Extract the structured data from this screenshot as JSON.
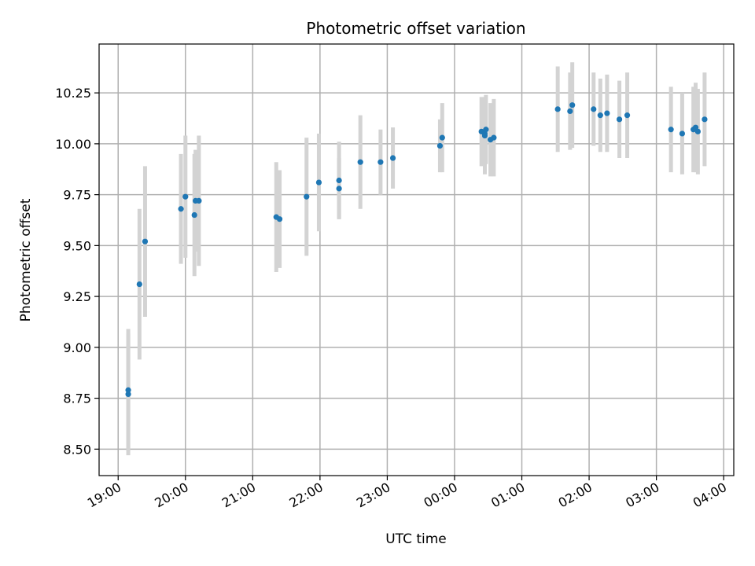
{
  "chart_data": {
    "type": "scatter",
    "title": "Photometric offset variation",
    "xlabel": "UTC time",
    "ylabel": "Photometric offset",
    "grid": true,
    "x_ticks": [
      "19:00",
      "20:00",
      "21:00",
      "22:00",
      "23:00",
      "00:00",
      "01:00",
      "02:00",
      "03:00",
      "04:00"
    ],
    "y_ticks": [
      "8.50",
      "8.75",
      "9.00",
      "9.25",
      "9.50",
      "9.75",
      "10.00",
      "10.25"
    ],
    "xlim": [
      "18:43",
      "04:09"
    ],
    "ylim": [
      8.37,
      10.49
    ],
    "colors": {
      "point": "#1f77b4",
      "error_bar": "#d3d3d3",
      "grid": "#b0b0b0"
    },
    "series": [
      {
        "x": [
          "19:09",
          "19:09",
          "19:19",
          "19:24",
          "19:56",
          "20:00",
          "20:08",
          "20:09",
          "20:12",
          "21:21",
          "21:24",
          "21:48",
          "21:59",
          "22:17",
          "22:17",
          "22:36",
          "22:54",
          "23:05",
          "23:47",
          "23:49",
          "00:24",
          "00:27",
          "00:27",
          "00:28",
          "00:32",
          "00:35",
          "01:32",
          "01:43",
          "01:45",
          "02:04",
          "02:10",
          "02:16",
          "02:27",
          "02:34",
          "03:13",
          "03:23",
          "03:33",
          "03:35",
          "03:37",
          "03:43"
        ],
        "y": [
          8.77,
          8.79,
          9.31,
          9.52,
          9.68,
          9.74,
          9.65,
          9.72,
          9.72,
          9.64,
          9.63,
          9.74,
          9.81,
          9.82,
          9.78,
          9.91,
          9.91,
          9.93,
          9.99,
          10.03,
          10.06,
          10.05,
          10.04,
          10.07,
          10.02,
          10.03,
          10.17,
          10.16,
          10.19,
          10.17,
          10.14,
          10.15,
          10.12,
          10.14,
          10.07,
          10.05,
          10.07,
          10.08,
          10.06,
          10.12
        ],
        "error": [
          0.3,
          0.3,
          0.37,
          0.37,
          0.27,
          0.3,
          0.3,
          0.25,
          0.32,
          0.27,
          0.24,
          0.29,
          0.24,
          0.19,
          0.15,
          0.23,
          0.16,
          0.15,
          0.13,
          0.17,
          0.17,
          0.15,
          0.19,
          0.17,
          0.18,
          0.19,
          0.21,
          0.19,
          0.21,
          0.18,
          0.18,
          0.19,
          0.19,
          0.21,
          0.21,
          0.2,
          0.21,
          0.22,
          0.21,
          0.23
        ]
      }
    ]
  }
}
